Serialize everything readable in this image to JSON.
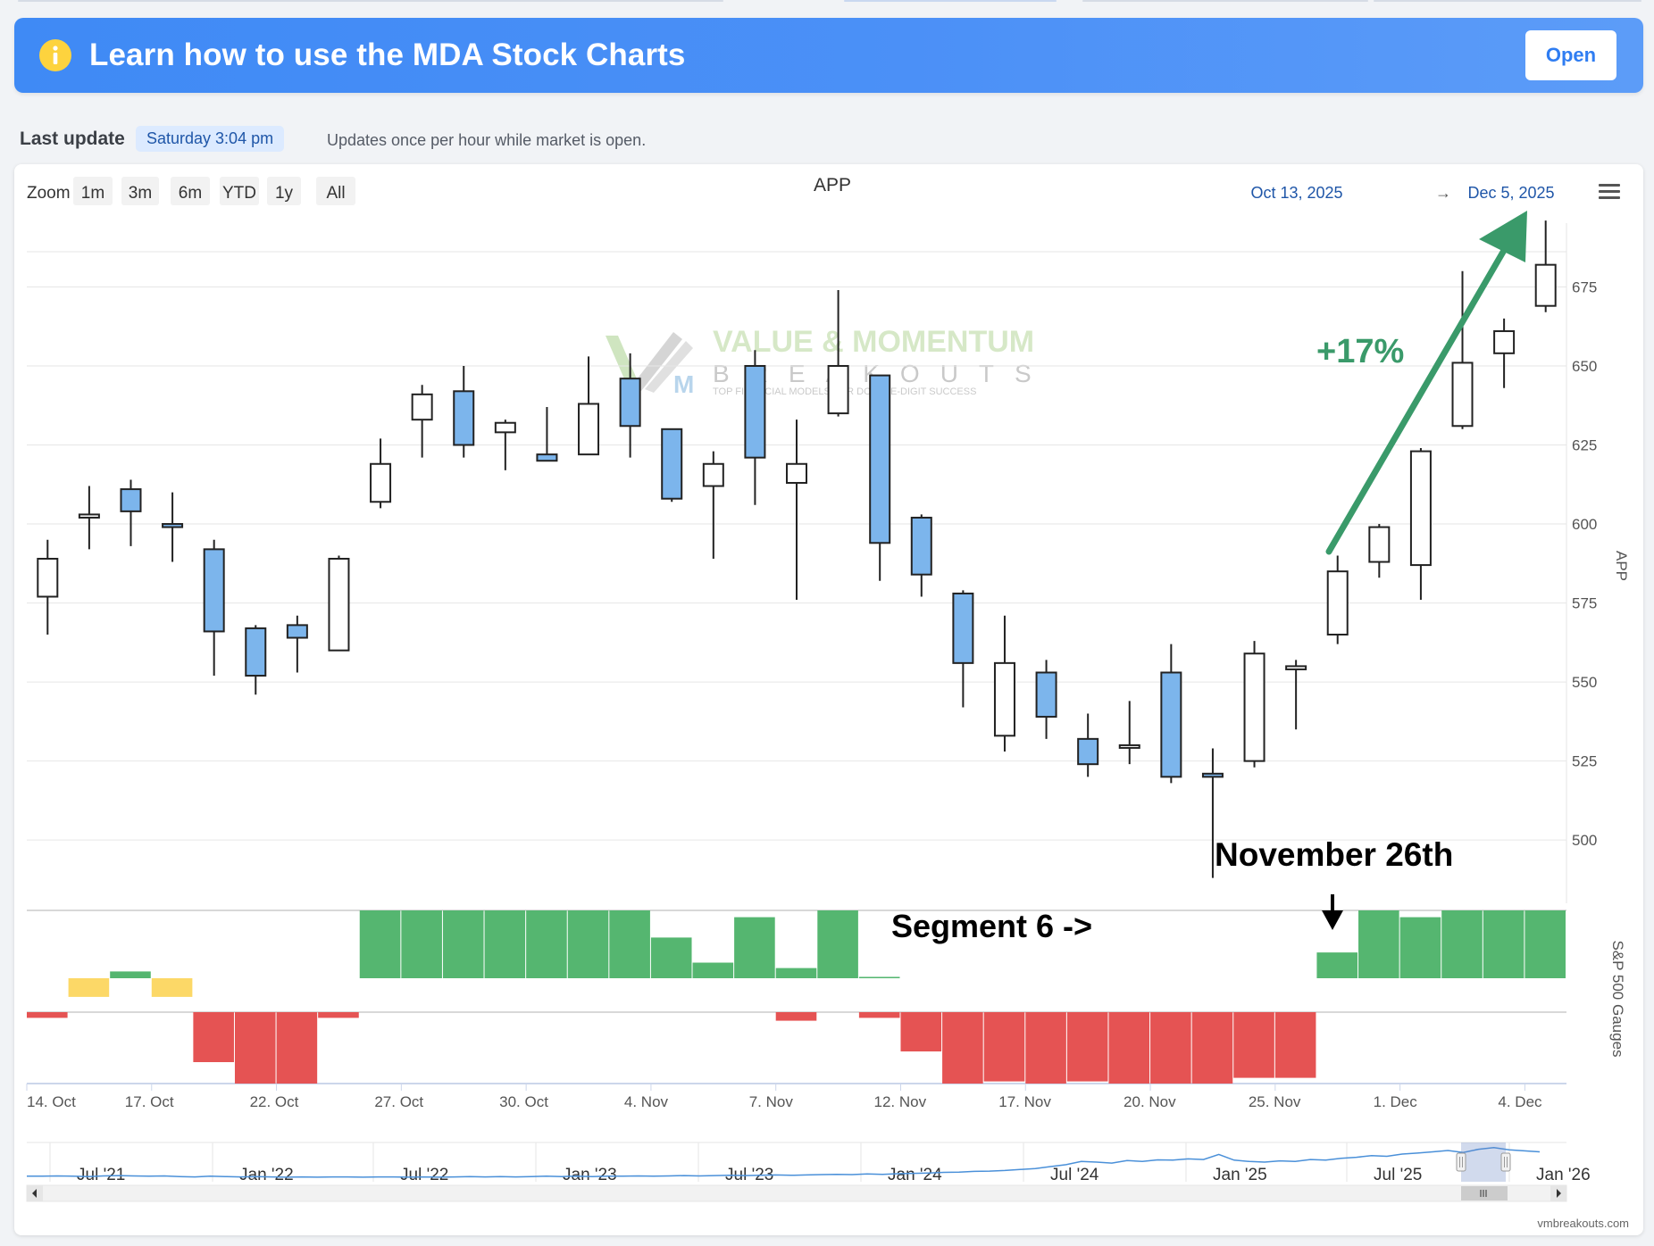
{
  "banner": {
    "icon": "info-icon",
    "title": "Learn how to use the MDA Stock Charts",
    "button_label": "Open",
    "background_color": "#4b90f7",
    "icon_color": "#fdd33e"
  },
  "update": {
    "label": "Last update",
    "value": "Saturday 3:04 pm",
    "note": "Updates once per hour while market is open."
  },
  "toolbar": {
    "zoom_label": "Zoom",
    "zoom_options": [
      "1m",
      "3m",
      "6m",
      "YTD",
      "1y",
      "All"
    ],
    "range_from": "Oct 13, 2025",
    "range_arrow": "→",
    "range_to": "Dec 5, 2025",
    "menu_icon": "hamburger-menu-icon"
  },
  "watermark": {
    "line1": "VALUE & MOMENTUM",
    "line2": "BREAKOUTS",
    "line3": "TOP FINANCIAL MODELS FOR DOUBLE-DIGIT SUCCESS"
  },
  "annotations": {
    "gain": "+17%",
    "date_note": "November 26th",
    "segment_note": "Segment 6 ->"
  },
  "credit": "vmbreakouts.com",
  "colors": {
    "candle_up": "#ffffff",
    "candle_down": "#7cb5ec",
    "gauge_positive": "#55b670",
    "gauge_negative": "#e55353",
    "gauge_neutral": "#fcd867",
    "arrow": "#3a9a6a",
    "navigator_line": "#4a90d9"
  },
  "chart_data": [
    {
      "type": "candlestick",
      "title": "APP",
      "ylabel": "APP",
      "ylim": [
        480,
        698
      ],
      "yticks": [
        500,
        525,
        550,
        575,
        600,
        625,
        650,
        675
      ],
      "x_tick_labels": [
        "14. Oct",
        "17. Oct",
        "22. Oct",
        "27. Oct",
        "30. Oct",
        "4. Nov",
        "7. Nov",
        "12. Nov",
        "17. Nov",
        "20. Nov",
        "25. Nov",
        "1. Dec",
        "4. Dec"
      ],
      "x_tick_positions": [
        0,
        3,
        6,
        9,
        12,
        15,
        18,
        21,
        24,
        27,
        30,
        33,
        36
      ],
      "candles": [
        {
          "date": "Oct 13",
          "open": 577,
          "high": 595,
          "low": 565,
          "close": 589
        },
        {
          "date": "Oct 14",
          "open": 602,
          "high": 612,
          "low": 592,
          "close": 603
        },
        {
          "date": "Oct 15",
          "open": 611,
          "high": 614,
          "low": 593,
          "close": 604
        },
        {
          "date": "Oct 16",
          "open": 600,
          "high": 610,
          "low": 588,
          "close": 599
        },
        {
          "date": "Oct 17",
          "open": 592,
          "high": 595,
          "low": 552,
          "close": 566
        },
        {
          "date": "Oct 20",
          "open": 567,
          "high": 568,
          "low": 546,
          "close": 552
        },
        {
          "date": "Oct 21",
          "open": 568,
          "high": 571,
          "low": 553,
          "close": 564
        },
        {
          "date": "Oct 22",
          "open": 560,
          "high": 590,
          "low": 560,
          "close": 589
        },
        {
          "date": "Oct 23",
          "open": 607,
          "high": 627,
          "low": 605,
          "close": 619
        },
        {
          "date": "Oct 24",
          "open": 633,
          "high": 644,
          "low": 621,
          "close": 641
        },
        {
          "date": "Oct 27",
          "open": 642,
          "high": 650,
          "low": 621,
          "close": 625
        },
        {
          "date": "Oct 28",
          "open": 629,
          "high": 633,
          "low": 617,
          "close": 632
        },
        {
          "date": "Oct 29",
          "open": 622,
          "high": 637,
          "low": 620,
          "close": 620
        },
        {
          "date": "Oct 30",
          "open": 622,
          "high": 653,
          "low": 622,
          "close": 638
        },
        {
          "date": "Oct 31",
          "open": 646,
          "high": 654,
          "low": 621,
          "close": 631
        },
        {
          "date": "Nov 3",
          "open": 630,
          "high": 630,
          "low": 607,
          "close": 608
        },
        {
          "date": "Nov 4",
          "open": 612,
          "high": 623,
          "low": 589,
          "close": 619
        },
        {
          "date": "Nov 5",
          "open": 650,
          "high": 655,
          "low": 606,
          "close": 621
        },
        {
          "date": "Nov 6",
          "open": 613,
          "high": 633,
          "low": 576,
          "close": 619
        },
        {
          "date": "Nov 7",
          "open": 635,
          "high": 674,
          "low": 634,
          "close": 650
        },
        {
          "date": "Nov 10",
          "open": 647,
          "high": 647,
          "low": 582,
          "close": 594
        },
        {
          "date": "Nov 11",
          "open": 602,
          "high": 603,
          "low": 577,
          "close": 584
        },
        {
          "date": "Nov 12",
          "open": 578,
          "high": 579,
          "low": 542,
          "close": 556
        },
        {
          "date": "Nov 13",
          "open": 533,
          "high": 571,
          "low": 528,
          "close": 556
        },
        {
          "date": "Nov 14",
          "open": 553,
          "high": 557,
          "low": 532,
          "close": 539
        },
        {
          "date": "Nov 17",
          "open": 532,
          "high": 540,
          "low": 520,
          "close": 524
        },
        {
          "date": "Nov 18",
          "open": 530,
          "high": 544,
          "low": 524,
          "close": 530
        },
        {
          "date": "Nov 19",
          "open": 553,
          "high": 562,
          "low": 518,
          "close": 520
        },
        {
          "date": "Nov 20",
          "open": 521,
          "high": 529,
          "low": 488,
          "close": 520
        },
        {
          "date": "Nov 21",
          "open": 525,
          "high": 563,
          "low": 523,
          "close": 559
        },
        {
          "date": "Nov 24",
          "open": 554,
          "high": 557,
          "low": 535,
          "close": 555
        },
        {
          "date": "Nov 25",
          "open": 565,
          "high": 590,
          "low": 562,
          "close": 585
        },
        {
          "date": "Nov 26",
          "open": 588,
          "high": 600,
          "low": 583,
          "close": 599
        },
        {
          "date": "Nov 28",
          "open": 587,
          "high": 624,
          "low": 576,
          "close": 623
        },
        {
          "date": "Dec 1",
          "open": 631,
          "high": 680,
          "low": 630,
          "close": 651
        },
        {
          "date": "Dec 2",
          "open": 654,
          "high": 665,
          "low": 643,
          "close": 661
        },
        {
          "date": "Dec 3",
          "open": 669,
          "high": 696,
          "low": 667,
          "close": 682
        }
      ]
    },
    {
      "type": "bar",
      "title": "S&P 500 Gauges",
      "ylabel": "S&P 500 Gauges",
      "ylim": [
        -1,
        1
      ],
      "rows": [
        {
          "name": "top",
          "values": [
            0,
            -0.55,
            0.1,
            -0.55,
            0,
            0,
            0,
            0,
            1,
            1,
            1,
            1,
            1,
            1,
            1,
            0.6,
            0.23,
            0.9,
            0.15,
            1,
            0.02,
            0,
            0,
            0,
            0,
            0,
            0,
            0,
            0,
            0,
            0,
            0.38,
            1,
            0.9,
            1,
            1,
            1
          ]
        },
        {
          "name": "bottom",
          "values": [
            -0.08,
            0,
            0,
            0,
            -0.7,
            -1,
            -1,
            -0.08,
            0,
            0,
            0,
            0,
            0,
            0,
            0,
            0,
            0,
            0,
            -0.12,
            0,
            -0.08,
            -0.55,
            -1,
            -0.97,
            -1,
            -0.97,
            -1,
            -1,
            -1,
            -0.92,
            -0.92,
            0,
            0,
            0,
            0,
            0,
            0
          ]
        }
      ]
    },
    {
      "type": "line",
      "title": "navigator",
      "x_tick_labels": [
        "Jul '21",
        "Jan '22",
        "Jul '22",
        "Jan '23",
        "Jul '23",
        "Jan '24",
        "Jul '24",
        "Jan '25",
        "Jul '25",
        "Jan '26"
      ],
      "x": [
        0,
        1,
        2,
        3,
        4,
        5,
        6,
        7,
        8,
        9,
        10,
        11,
        12,
        13,
        14,
        15,
        16,
        17,
        18,
        19,
        20,
        21,
        22,
        23,
        24,
        25,
        26,
        27,
        28,
        29,
        30,
        31,
        32,
        33,
        34,
        35,
        36,
        37,
        38,
        39,
        40,
        41,
        42,
        43,
        44,
        45,
        46,
        47,
        48,
        49,
        50,
        51,
        52,
        53,
        54,
        55,
        56,
        57,
        58,
        59,
        60,
        61,
        62,
        63,
        64,
        65,
        66,
        67,
        68,
        69,
        70,
        71,
        72,
        73,
        74,
        75,
        76,
        77,
        78,
        79,
        80,
        81,
        82,
        83,
        84,
        85,
        86,
        87,
        88,
        89,
        90,
        91,
        92,
        93,
        94,
        95,
        96,
        97,
        98,
        99
      ],
      "y": [
        0.06,
        0.06,
        0.07,
        0.06,
        0.05,
        0.07,
        0.08,
        0.07,
        0.06,
        0.07,
        0.05,
        0.04,
        0.06,
        0.05,
        0.04,
        0.05,
        0.04,
        0.03,
        0.04,
        0.03,
        0.04,
        0.04,
        0.03,
        0.04,
        0.04,
        0.03,
        0.04,
        0.03,
        0.04,
        0.05,
        0.04,
        0.05,
        0.04,
        0.05,
        0.06,
        0.05,
        0.06,
        0.05,
        0.06,
        0.06,
        0.07,
        0.06,
        0.07,
        0.08,
        0.07,
        0.08,
        0.09,
        0.08,
        0.09,
        0.1,
        0.09,
        0.1,
        0.11,
        0.12,
        0.11,
        0.13,
        0.12,
        0.14,
        0.15,
        0.16,
        0.18,
        0.19,
        0.21,
        0.22,
        0.24,
        0.27,
        0.3,
        0.36,
        0.42,
        0.52,
        0.5,
        0.47,
        0.55,
        0.52,
        0.57,
        0.56,
        0.6,
        0.58,
        0.74,
        0.56,
        0.52,
        0.5,
        0.54,
        0.52,
        0.58,
        0.56,
        0.62,
        0.65,
        0.7,
        0.68,
        0.75,
        0.78,
        0.82,
        0.86,
        0.8,
        0.9,
        0.95,
        0.88,
        0.85,
        0.82
      ],
      "selected_range": [
        "Oct 13, 2025",
        "Dec 5, 2025"
      ]
    }
  ]
}
